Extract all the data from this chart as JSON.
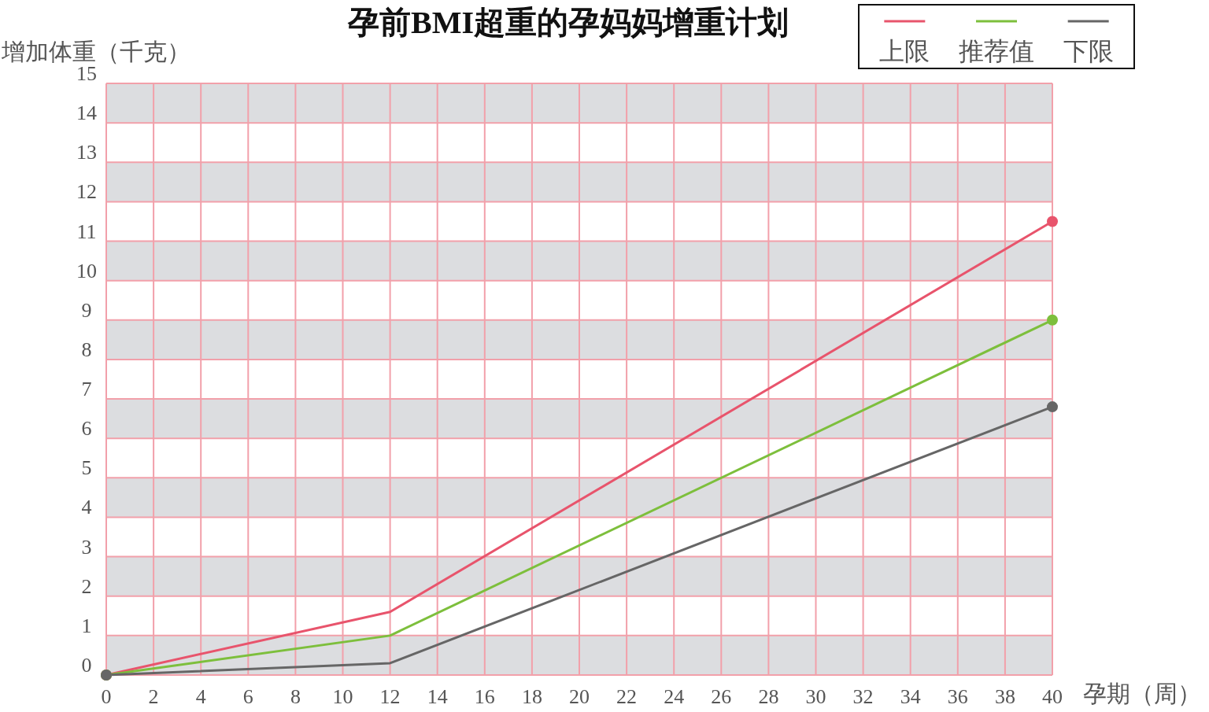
{
  "chart_data": {
    "type": "line",
    "title": "孕前BMI超重的孕妈妈增重计划",
    "xlabel": "孕期（周）",
    "ylabel": "增加体重（千克）",
    "x": [
      0,
      12,
      40
    ],
    "series": [
      {
        "name": "上限",
        "color": "#e8546c",
        "values": [
          0,
          1.6,
          11.5
        ]
      },
      {
        "name": "推荐值",
        "color": "#7dbf3c",
        "values": [
          0,
          1.0,
          9.0
        ]
      },
      {
        "name": "下限",
        "color": "#666666",
        "values": [
          0,
          0.3,
          6.8
        ]
      }
    ],
    "xlim": [
      0,
      40
    ],
    "ylim": [
      0,
      15
    ],
    "xticks": [
      0,
      2,
      4,
      6,
      8,
      10,
      12,
      14,
      16,
      18,
      20,
      22,
      24,
      26,
      28,
      30,
      32,
      34,
      36,
      38,
      40
    ],
    "yticks": [
      0,
      1,
      2,
      3,
      4,
      5,
      6,
      7,
      8,
      9,
      10,
      11,
      12,
      13,
      14,
      15
    ],
    "bands": [
      {
        "axis": "y",
        "from": 0,
        "to": 1,
        "color": "#dcdde0"
      },
      {
        "axis": "y",
        "from": 2,
        "to": 3,
        "color": "#dcdde0"
      },
      {
        "axis": "y",
        "from": 4,
        "to": 5,
        "color": "#dcdde0"
      },
      {
        "axis": "y",
        "from": 6,
        "to": 7,
        "color": "#dcdde0"
      },
      {
        "axis": "y",
        "from": 8,
        "to": 9,
        "color": "#dcdde0"
      },
      {
        "axis": "y",
        "from": 10,
        "to": 11,
        "color": "#dcdde0"
      },
      {
        "axis": "y",
        "from": 12,
        "to": 13,
        "color": "#dcdde0"
      },
      {
        "axis": "y",
        "from": 14,
        "to": 15,
        "color": "#dcdde0"
      }
    ],
    "grid": true,
    "legend": "top right",
    "marker": "circle",
    "line_style": "solid"
  }
}
